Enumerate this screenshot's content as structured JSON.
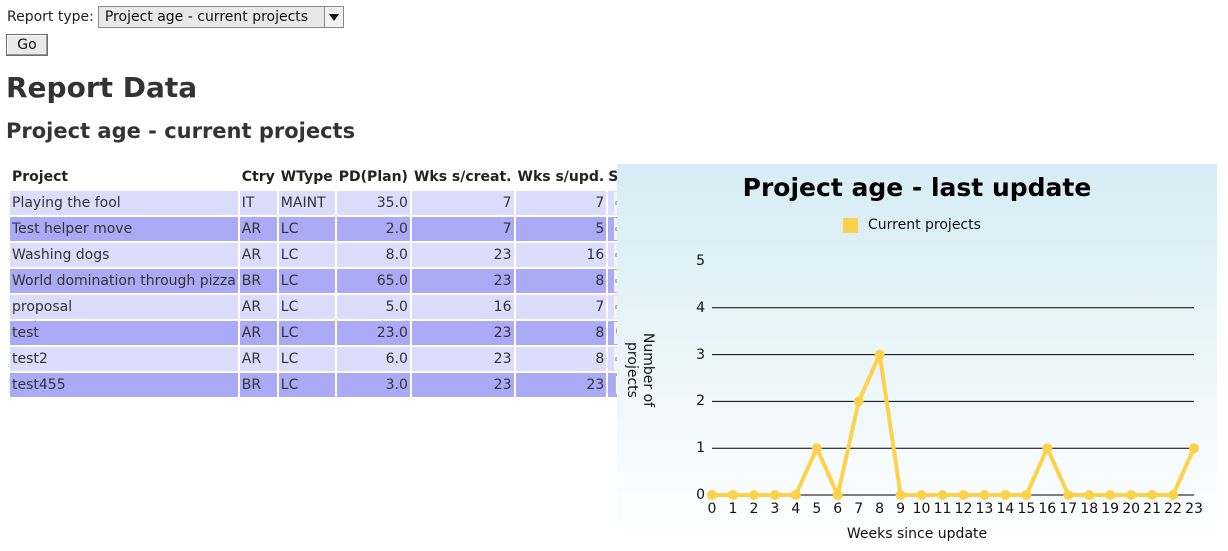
{
  "form": {
    "report_type_label": "Report type:",
    "report_type_value": "Project age - current projects",
    "go_label": "Go"
  },
  "page_title": "Report Data",
  "report_title": "Project age - current projects",
  "table": {
    "headers": [
      "Project",
      "Ctry",
      "WType",
      "PD(Plan)",
      "Wks s/creat.",
      "Wks s/upd.",
      "Stat"
    ],
    "rows": [
      {
        "project": "Playing the fool",
        "ctry": "IT",
        "wtype": "MAINT",
        "pd": "35.0",
        "wks_creat": "7",
        "wks_upd": "7",
        "stat_icon": "gear-icon"
      },
      {
        "project": "Test helper move",
        "ctry": "AR",
        "wtype": "LC",
        "pd": "2.0",
        "wks_creat": "7",
        "wks_upd": "5",
        "stat_icon": "gear-icon"
      },
      {
        "project": "Washing dogs",
        "ctry": "AR",
        "wtype": "LC",
        "pd": "8.0",
        "wks_creat": "23",
        "wks_upd": "16",
        "stat_icon": "gear-icon"
      },
      {
        "project": "World domination through pizza",
        "ctry": "BR",
        "wtype": "LC",
        "pd": "65.0",
        "wks_creat": "23",
        "wks_upd": "8",
        "stat_icon": "gear-icon"
      },
      {
        "project": "proposal",
        "ctry": "AR",
        "wtype": "LC",
        "pd": "5.0",
        "wks_creat": "16",
        "wks_upd": "7",
        "stat_icon": "gear-icon"
      },
      {
        "project": "test",
        "ctry": "AR",
        "wtype": "LC",
        "pd": "23.0",
        "wks_creat": "23",
        "wks_upd": "8",
        "stat_icon": "magnifier-icon"
      },
      {
        "project": "test2",
        "ctry": "AR",
        "wtype": "LC",
        "pd": "6.0",
        "wks_creat": "23",
        "wks_upd": "8",
        "stat_icon": "gear-icon"
      },
      {
        "project": "test455",
        "ctry": "BR",
        "wtype": "LC",
        "pd": "3.0",
        "wks_creat": "23",
        "wks_upd": "23",
        "stat_icon": "blank-page-icon"
      }
    ]
  },
  "chart_data": {
    "type": "line",
    "title": "Project age - last update",
    "xlabel": "Weeks since update",
    "ylabel": "Number of projects",
    "categories": [
      "0",
      "1",
      "2",
      "3",
      "4",
      "5",
      "6",
      "7",
      "8",
      "9",
      "10",
      "11",
      "12",
      "13",
      "14",
      "15",
      "16",
      "17",
      "18",
      "19",
      "20",
      "21",
      "22",
      "23"
    ],
    "series": [
      {
        "name": "Current projects",
        "values": [
          0,
          0,
          0,
          0,
          0,
          1,
          0,
          2,
          3,
          0,
          0,
          0,
          0,
          0,
          0,
          0,
          1,
          0,
          0,
          0,
          0,
          0,
          0,
          1
        ]
      }
    ],
    "ylim": [
      0,
      5
    ],
    "yticks": [
      "0",
      "1",
      "2",
      "3",
      "4",
      "5"
    ],
    "grid": true,
    "legend_position": "top",
    "colors": {
      "series": "#fdd24b",
      "grid": "#000000"
    }
  }
}
